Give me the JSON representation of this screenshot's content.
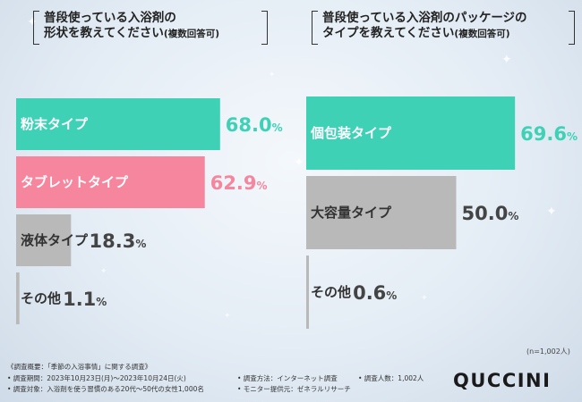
{
  "chart_data": [
    {
      "type": "bar",
      "title": "普段使っている入浴剤の形状を教えてください",
      "subtitle": "(複数回答可)",
      "title_line1": "普段使っている入浴剤の",
      "title_line2": "形状を教えてください",
      "categories": [
        "粉末タイプ",
        "タブレットタイプ",
        "液体タイプ",
        "その他"
      ],
      "values": [
        68.0,
        62.9,
        18.3,
        1.1
      ],
      "value_labels": [
        "68.0",
        "62.9",
        "18.3",
        "1.1"
      ],
      "unit": "%",
      "colors": [
        "#3ed1b6",
        "#f5869e",
        "#b9b9b9",
        "#b9b9b9"
      ],
      "label_colors": [
        "#ffffff",
        "#ffffff",
        "#333333",
        "#333333"
      ],
      "value_colors": [
        "#3ed1b6",
        "#f5869e",
        "#444444",
        "#444444"
      ],
      "orientation": "horizontal",
      "xlim": [
        0,
        100
      ]
    },
    {
      "type": "bar",
      "title": "普段使っている入浴剤のパッケージのタイプを教えてください",
      "subtitle": "(複数回答可)",
      "title_line1": "普段使っている入浴剤のパッケージの",
      "title_line2": "タイプを教えてください",
      "categories": [
        "個包装タイプ",
        "大容量タイプ",
        "その他"
      ],
      "values": [
        69.6,
        50.0,
        0.6
      ],
      "value_labels": [
        "69.6",
        "50.0",
        "0.6"
      ],
      "unit": "%",
      "colors": [
        "#3ed1b6",
        "#b9b9b9",
        "#b9b9b9"
      ],
      "label_colors": [
        "#ffffff",
        "#333333",
        "#333333"
      ],
      "value_colors": [
        "#3ed1b6",
        "#444444",
        "#444444"
      ],
      "orientation": "horizontal",
      "xlim": [
        0,
        100
      ]
    }
  ],
  "sample_note": "(n=1,002人)",
  "footer": {
    "line1": "《調査概要：「季節の入浴事情」に関する調査》",
    "line2a": "• 調査期間：2023年10月23日(月)～2023年10月24日(火)",
    "line2b": "• 調査方法：インターネット調査",
    "line2c": "• 調査人数：1,002人",
    "line3a": "• 調査対象：入浴剤を使う習慣のある20代～50代の女性1,000名",
    "line3b": "• モニター提供元：ゼネラルリサーチ"
  },
  "brand": "QUCCINI"
}
